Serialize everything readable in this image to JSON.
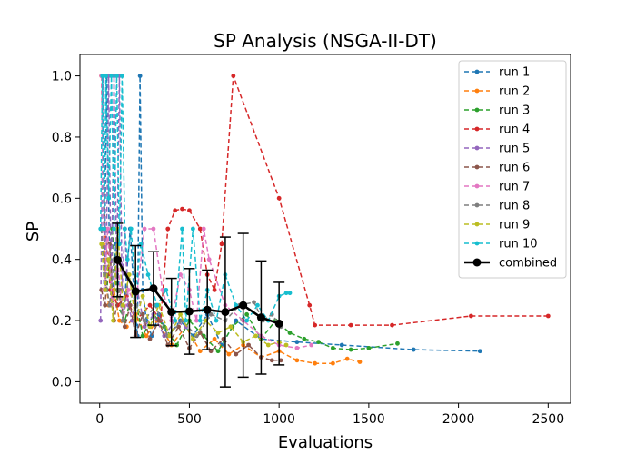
{
  "chart_data": {
    "type": "line",
    "title": "SP Analysis (NSGA-II-DT)",
    "xlabel": "Evaluations",
    "ylabel": "SP",
    "xlim": [
      -110,
      2625
    ],
    "ylim": [
      -0.07,
      1.07
    ],
    "xticks": [
      0,
      500,
      1000,
      1500,
      2000,
      2500
    ],
    "yticks": [
      0.0,
      0.2,
      0.4,
      0.6,
      0.8,
      1.0
    ],
    "ytick_labels": [
      "0.0",
      "0.2",
      "0.4",
      "0.6",
      "0.8",
      "1.0"
    ],
    "grid": false,
    "legend_position": "top-right",
    "series": [
      {
        "name": "run 1",
        "color": "#1f77b4",
        "x": [
          10,
          25,
          40,
          55,
          70,
          90,
          110,
          130,
          150,
          170,
          190,
          210,
          225,
          240,
          260,
          290,
          330,
          380,
          450,
          520,
          600,
          680,
          760,
          900,
          1100,
          1350,
          1750,
          2120
        ],
        "y": [
          0.5,
          0.3,
          1.0,
          0.4,
          0.25,
          0.45,
          0.3,
          0.2,
          0.35,
          0.5,
          0.3,
          0.15,
          1.0,
          0.3,
          0.2,
          0.15,
          0.22,
          0.15,
          0.2,
          0.15,
          0.22,
          0.12,
          0.2,
          0.14,
          0.13,
          0.12,
          0.105,
          0.1
        ]
      },
      {
        "name": "run 2",
        "color": "#ff7f0e",
        "x": [
          10,
          30,
          50,
          80,
          110,
          150,
          200,
          260,
          320,
          400,
          480,
          560,
          640,
          720,
          800,
          900,
          1000,
          1100,
          1200,
          1300,
          1380,
          1450
        ],
        "y": [
          1.0,
          0.35,
          0.25,
          0.3,
          0.2,
          0.18,
          0.22,
          0.15,
          0.2,
          0.12,
          0.18,
          0.1,
          0.14,
          0.09,
          0.12,
          0.08,
          0.1,
          0.07,
          0.06,
          0.06,
          0.075,
          0.065
        ]
      },
      {
        "name": "run 3",
        "color": "#2ca02c",
        "x": [
          15,
          40,
          70,
          100,
          140,
          190,
          240,
          300,
          360,
          430,
          500,
          580,
          660,
          740,
          820,
          900,
          980,
          1060,
          1140,
          1220,
          1300,
          1400,
          1500,
          1660
        ],
        "y": [
          0.45,
          0.3,
          0.5,
          0.25,
          0.2,
          0.3,
          0.15,
          0.22,
          0.18,
          0.12,
          0.2,
          0.15,
          0.1,
          0.18,
          0.22,
          0.14,
          0.2,
          0.16,
          0.14,
          0.13,
          0.11,
          0.105,
          0.11,
          0.125
        ]
      },
      {
        "name": "run 4",
        "color": "#d62728",
        "x": [
          10,
          30,
          60,
          100,
          150,
          200,
          280,
          340,
          380,
          420,
          460,
          500,
          560,
          600,
          640,
          680,
          745,
          1000,
          1170,
          1200,
          1400,
          1630,
          2070,
          2500
        ],
        "y": [
          1.0,
          0.5,
          0.3,
          0.25,
          0.28,
          0.2,
          0.25,
          0.2,
          0.5,
          0.56,
          0.565,
          0.56,
          0.5,
          0.35,
          0.3,
          0.45,
          1.0,
          0.6,
          0.25,
          0.185,
          0.185,
          0.185,
          0.215,
          0.215
        ]
      },
      {
        "name": "run 5",
        "color": "#9467bd",
        "x": [
          5,
          20,
          35,
          50,
          65,
          80,
          95,
          110,
          125,
          140,
          160,
          180,
          210,
          250,
          300,
          360,
          420,
          480
        ],
        "y": [
          0.2,
          1.0,
          0.3,
          1.0,
          0.25,
          1.0,
          0.35,
          1.0,
          0.3,
          0.5,
          0.25,
          0.2,
          0.3,
          0.18,
          0.22,
          0.15,
          0.2,
          0.18
        ]
      },
      {
        "name": "run 6",
        "color": "#8c564b",
        "x": [
          10,
          30,
          55,
          80,
          110,
          140,
          170,
          200,
          240,
          280,
          330,
          380,
          440,
          500,
          560,
          620,
          690,
          760,
          830,
          900,
          960,
          1010
        ],
        "y": [
          0.3,
          0.25,
          0.45,
          0.2,
          0.3,
          0.18,
          0.25,
          0.15,
          0.22,
          0.14,
          0.2,
          0.12,
          0.18,
          0.11,
          0.16,
          0.1,
          0.14,
          0.09,
          0.12,
          0.08,
          0.07,
          0.07
        ]
      },
      {
        "name": "run 7",
        "color": "#e377c2",
        "x": [
          10,
          25,
          45,
          70,
          100,
          130,
          160,
          200,
          250,
          300,
          350,
          400,
          450,
          500,
          540,
          580,
          610,
          700,
          800,
          900,
          1000,
          1100,
          1180
        ],
        "y": [
          1.0,
          0.3,
          0.5,
          0.25,
          0.4,
          0.2,
          0.3,
          0.25,
          0.5,
          0.5,
          0.3,
          0.2,
          0.35,
          0.3,
          0.2,
          0.5,
          0.4,
          0.25,
          0.2,
          0.15,
          0.12,
          0.11,
          0.12
        ]
      },
      {
        "name": "run 8",
        "color": "#7f7f7f",
        "x": [
          10,
          30,
          55,
          80,
          105,
          130,
          160,
          200,
          250,
          310,
          380,
          460,
          540,
          620,
          700,
          780,
          860,
          910,
          960,
          1010
        ],
        "y": [
          0.5,
          0.35,
          0.25,
          0.4,
          0.3,
          0.2,
          0.35,
          0.25,
          0.2,
          0.25,
          0.15,
          0.2,
          0.15,
          0.22,
          0.2,
          0.25,
          0.26,
          0.2,
          0.22,
          0.18
        ]
      },
      {
        "name": "run 9",
        "color": "#bcbd22",
        "x": [
          10,
          30,
          50,
          75,
          100,
          130,
          165,
          200,
          240,
          280,
          330,
          390,
          450,
          520,
          590,
          660,
          730,
          800,
          870,
          940,
          1000,
          1040
        ],
        "y": [
          0.45,
          0.3,
          0.4,
          0.2,
          0.5,
          0.25,
          0.35,
          0.2,
          0.28,
          0.18,
          0.25,
          0.15,
          0.22,
          0.14,
          0.2,
          0.16,
          0.18,
          0.13,
          0.15,
          0.12,
          0.13,
          0.12
        ]
      },
      {
        "name": "run 10",
        "color": "#17becf",
        "x": [
          5,
          15,
          25,
          35,
          50,
          65,
          80,
          95,
          110,
          125,
          140,
          155,
          175,
          200,
          230,
          270,
          320,
          370,
          420,
          460,
          480,
          520,
          560,
          600,
          650,
          700,
          760,
          820,
          880,
          940,
          1000,
          1040,
          1060
        ],
        "y": [
          0.5,
          1.0,
          0.5,
          1.0,
          0.6,
          1.0,
          0.5,
          1.0,
          0.45,
          1.0,
          0.5,
          0.4,
          0.5,
          0.3,
          0.45,
          0.35,
          0.25,
          0.3,
          0.2,
          0.5,
          0.2,
          0.5,
          0.2,
          0.3,
          0.2,
          0.35,
          0.25,
          0.2,
          0.25,
          0.2,
          0.28,
          0.29,
          0.29
        ]
      }
    ],
    "combined": {
      "name": "combined",
      "color": "#000000",
      "x": [
        100,
        200,
        300,
        400,
        500,
        600,
        700,
        800,
        900,
        1000
      ],
      "y": [
        0.398,
        0.295,
        0.305,
        0.228,
        0.23,
        0.235,
        0.228,
        0.25,
        0.21,
        0.19
      ],
      "err": [
        0.12,
        0.15,
        0.12,
        0.11,
        0.14,
        0.13,
        0.245,
        0.235,
        0.185,
        0.135
      ]
    }
  }
}
